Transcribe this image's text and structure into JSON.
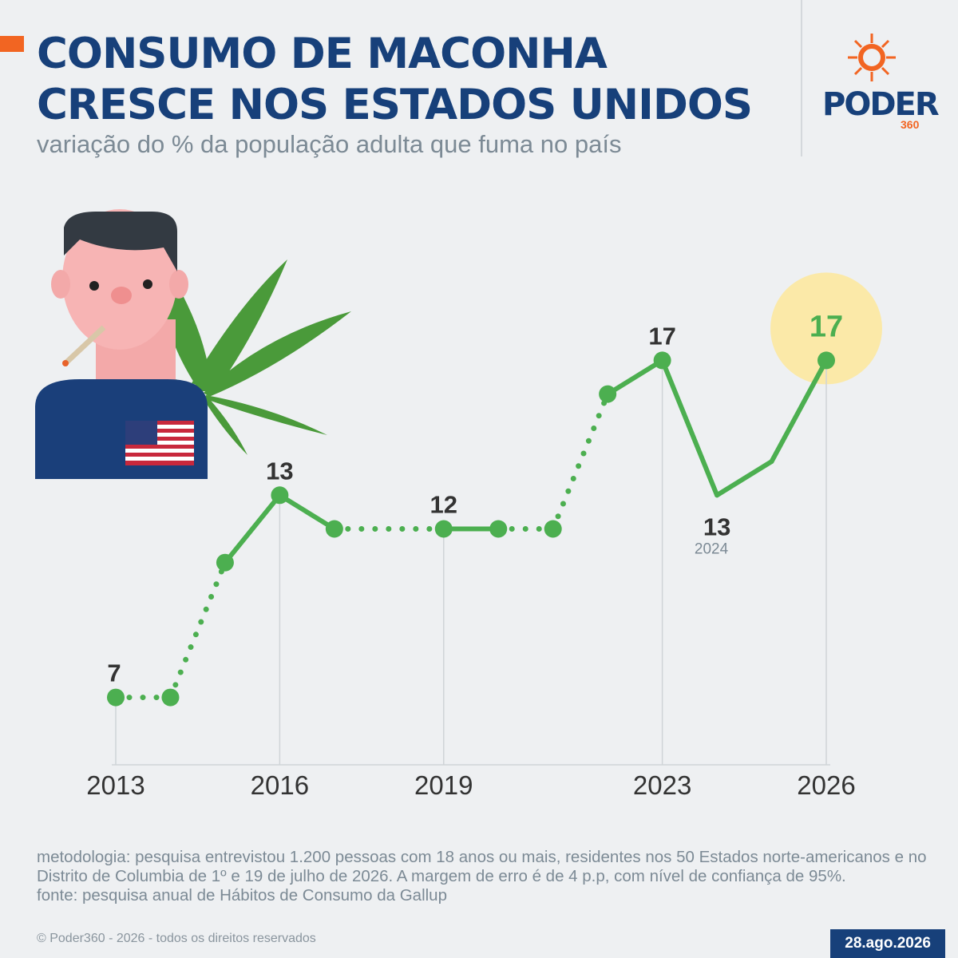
{
  "chart_data": {
    "type": "line",
    "title": [
      "CONSUMO DE MACONHA",
      "CRESCE NOS ESTADOS UNIDOS"
    ],
    "subtitle": "variação do % da população adulta que fuma no país",
    "x": [
      2013,
      2014,
      2015,
      2016,
      2017,
      2019,
      2020,
      2021,
      2022,
      2023,
      2024,
      2025,
      2026
    ],
    "series": [
      {
        "name": "consumo",
        "color": "#4caf50",
        "values": [
          7,
          7,
          11,
          13,
          12,
          12,
          12,
          12,
          16,
          17,
          13,
          14,
          17
        ],
        "value_labels": [
          "7",
          null,
          null,
          "13",
          null,
          "12",
          null,
          null,
          null,
          "17",
          "13",
          null,
          "17"
        ],
        "markers": [
          true,
          true,
          true,
          true,
          true,
          true,
          true,
          true,
          true,
          true,
          false,
          false,
          true
        ],
        "segment_styles": [
          "dotted",
          "dotted",
          "solid",
          "solid",
          "dotted",
          "solid",
          "dotted",
          "dotted",
          "solid",
          "solid",
          "solid",
          "solid"
        ]
      }
    ],
    "annotations": [
      {
        "x": 2024,
        "text": "2024"
      }
    ],
    "highlight": {
      "x": 2026,
      "color": "#fbe9a8"
    },
    "xlim": [
      2013,
      2026
    ],
    "xticks": [
      2013,
      2016,
      2019,
      2023,
      2026
    ],
    "ylim": [
      5,
      19
    ],
    "methodology": "metodologia: pesquisa entrevistou 1.200 pessoas com 18 anos ou mais, residentes nos 50 Estados norte-americanos e no Distrito de Columbia de 1º e 19 de julho de 2026. A margem de erro é de 4 p.p, com nível de confiança de 95%.",
    "source": "fonte: pesquisa anual de Hábitos de Consumo da Gallup",
    "copyright": "© Poder360 - 2026 - todos os direitos reservados",
    "date": "28.ago.2026",
    "logo": {
      "name": "PODER",
      "number": "360"
    }
  }
}
